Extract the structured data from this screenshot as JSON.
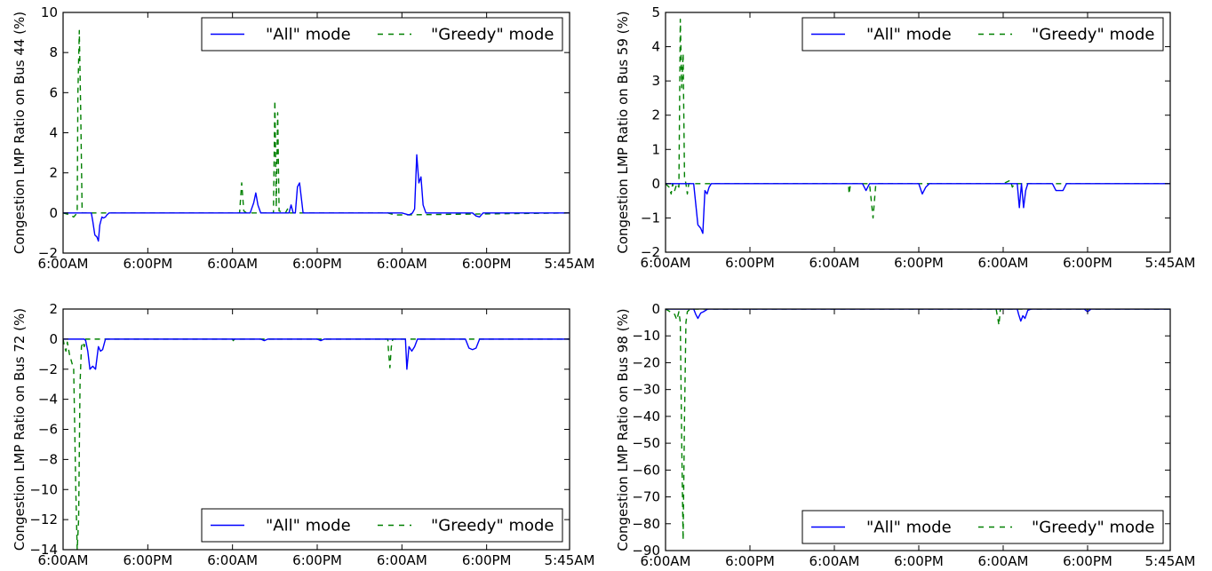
{
  "figure": {
    "background": "#ffffff",
    "colors": {
      "all_mode": "#0000ff",
      "greedy_mode": "#008000",
      "axes": "#000000"
    }
  },
  "chart_data": [
    {
      "type": "line",
      "title": "",
      "xlabel": "",
      "ylabel": "Congestion LMP Ratio on Bus 44 (%)",
      "x_tick_labels": [
        "6:00AM",
        "6:00PM",
        "6:00AM",
        "6:00PM",
        "6:00AM",
        "6:00PM",
        "5:45AM"
      ],
      "x_tick_hours": [
        0,
        12,
        24,
        36,
        48,
        60,
        71.75
      ],
      "xlim": [
        0,
        71.75
      ],
      "ylim": [
        -2,
        10
      ],
      "y_ticks": [
        -2,
        0,
        2,
        4,
        6,
        8,
        10
      ],
      "y_tick_labels": [
        "−2",
        "0",
        "2",
        "4",
        "6",
        "8",
        "10"
      ],
      "legend": {
        "position": "top-right",
        "entries": [
          "\"All\" mode",
          "\"Greedy\" mode"
        ]
      },
      "series": [
        {
          "name": "\"All\" mode",
          "style": "solid",
          "color": "#0000ff",
          "x": [
            0,
            4,
            4.2,
            4.5,
            4.8,
            5.0,
            5.2,
            5.5,
            5.7,
            6.0,
            6.2,
            6.5,
            7.0,
            26.5,
            27.0,
            27.3,
            27.6,
            28.0,
            28.5,
            32.0,
            32.3,
            32.6,
            32.9,
            33.2,
            33.5,
            33.8,
            34.0,
            34.5,
            35.0,
            48.0,
            49.0,
            49.5,
            49.8,
            50.1,
            50.4,
            50.7,
            51.0,
            51.4,
            58.0,
            58.5,
            59.0,
            59.5,
            71.75
          ],
          "y": [
            0,
            0,
            -0.4,
            -1.1,
            -1.2,
            -1.4,
            -0.6,
            -0.2,
            -0.25,
            -0.2,
            -0.1,
            0,
            0,
            0,
            0.5,
            1.0,
            0.4,
            0,
            0,
            0,
            0.4,
            0,
            0,
            1.3,
            1.5,
            0.6,
            0,
            0,
            0,
            0,
            -0.1,
            0,
            0.2,
            2.9,
            1.5,
            1.8,
            0.4,
            0,
            0,
            -0.15,
            -0.2,
            0,
            0
          ]
        },
        {
          "name": "\"Greedy\" mode",
          "style": "dashed",
          "color": "#008000",
          "x": [
            0,
            1.0,
            1.5,
            2.0,
            2.1,
            2.3,
            2.5,
            2.7,
            3.0,
            3.3,
            3.6,
            4.0,
            24.0,
            25.0,
            25.3,
            25.6,
            26.0,
            29.8,
            30.0,
            30.2,
            30.4,
            30.6,
            31.5,
            31.8,
            32.0,
            46.0,
            47.0,
            71.75
          ],
          "y": [
            0,
            -0.1,
            -0.2,
            0,
            6.0,
            9.1,
            5.0,
            0,
            0,
            0,
            0,
            0,
            0,
            0,
            1.5,
            0.1,
            0,
            0,
            5.6,
            0.3,
            5.0,
            0.1,
            0,
            0.2,
            0,
            0,
            -0.1,
            0
          ]
        }
      ]
    },
    {
      "type": "line",
      "title": "",
      "xlabel": "",
      "ylabel": "Congestion LMP Ratio on Bus 59 (%)",
      "x_tick_labels": [
        "6:00AM",
        "6:00PM",
        "6:00AM",
        "6:00PM",
        "6:00AM",
        "6:00PM",
        "5:45AM"
      ],
      "x_tick_hours": [
        0,
        12,
        24,
        36,
        48,
        60,
        71.75
      ],
      "xlim": [
        0,
        71.75
      ],
      "ylim": [
        -2,
        5
      ],
      "y_ticks": [
        -2,
        -1,
        0,
        1,
        2,
        3,
        4,
        5
      ],
      "y_tick_labels": [
        "−2",
        "−1",
        "0",
        "1",
        "2",
        "3",
        "4",
        "5"
      ],
      "legend": {
        "position": "top-right",
        "entries": [
          "\"All\" mode",
          "\"Greedy\" mode"
        ]
      },
      "series": [
        {
          "name": "\"All\" mode",
          "style": "solid",
          "color": "#0000ff",
          "x": [
            0,
            4.0,
            4.3,
            4.6,
            5.0,
            5.3,
            5.6,
            5.9,
            6.2,
            6.5,
            7.0,
            28.0,
            28.5,
            29.0,
            36.0,
            36.5,
            37.0,
            37.5,
            48.0,
            50.0,
            50.3,
            50.6,
            50.9,
            51.2,
            51.5,
            52.0,
            55.0,
            55.5,
            56.5,
            57.0,
            71.75
          ],
          "y": [
            0,
            0,
            -0.6,
            -1.2,
            -1.3,
            -1.45,
            -0.2,
            -0.3,
            -0.1,
            0,
            0,
            0,
            -0.2,
            0,
            0,
            -0.3,
            -0.1,
            0,
            0,
            0,
            -0.7,
            0,
            -0.7,
            -0.2,
            0,
            0,
            0,
            -0.2,
            -0.2,
            0,
            0
          ]
        },
        {
          "name": "\"Greedy\" mode",
          "style": "dashed",
          "color": "#008000",
          "x": [
            0,
            0.5,
            0.8,
            1.0,
            1.3,
            1.6,
            1.9,
            2.1,
            2.3,
            2.5,
            2.7,
            2.9,
            3.1,
            3.3,
            3.6,
            4.0,
            26.0,
            26.1,
            26.3,
            28.0,
            29.0,
            29.3,
            29.5,
            29.7,
            29.9,
            48.0,
            49.0,
            49.3,
            49.6,
            71.75
          ],
          "y": [
            0,
            -0.1,
            -0.3,
            0,
            -0.2,
            0,
            -0.1,
            4.8,
            2.8,
            3.8,
            0.2,
            0,
            -0.3,
            0,
            0,
            0,
            0,
            -0.3,
            0,
            0,
            0,
            -0.6,
            -1.0,
            -0.5,
            0,
            0,
            0.1,
            -0.1,
            0,
            0
          ]
        }
      ]
    },
    {
      "type": "line",
      "title": "",
      "xlabel": "",
      "ylabel": "Congestion LMP Ratio on Bus 72 (%)",
      "x_tick_labels": [
        "6:00AM",
        "6:00PM",
        "6:00AM",
        "6:00PM",
        "6:00AM",
        "6:00PM",
        "5:45AM"
      ],
      "x_tick_hours": [
        0,
        12,
        24,
        36,
        48,
        60,
        71.75
      ],
      "xlim": [
        0,
        71.75
      ],
      "ylim": [
        -14,
        2
      ],
      "y_ticks": [
        -14,
        -12,
        -10,
        -8,
        -6,
        -4,
        -2,
        0,
        2
      ],
      "y_tick_labels": [
        "−14",
        "−12",
        "−10",
        "−8",
        "−6",
        "−4",
        "−2",
        "0",
        "2"
      ],
      "legend": {
        "position": "bottom-right",
        "entries": [
          "\"All\" mode",
          "\"Greedy\" mode"
        ]
      },
      "series": [
        {
          "name": "\"All\" mode",
          "style": "solid",
          "color": "#0000ff",
          "x": [
            0,
            3.0,
            3.2,
            3.5,
            3.8,
            4.2,
            4.6,
            5.0,
            5.3,
            5.6,
            6.0,
            6.5,
            28.0,
            28.5,
            29.0,
            36.0,
            36.5,
            37.0,
            48.0,
            48.5,
            48.7,
            49.0,
            49.4,
            49.8,
            50.2,
            50.6,
            51.0,
            57.0,
            57.5,
            58.0,
            58.5,
            59.0,
            71.75
          ],
          "y": [
            0,
            0,
            -0.1,
            -0.8,
            -2.0,
            -1.8,
            -2.0,
            -0.5,
            -0.8,
            -0.7,
            0,
            0,
            0,
            -0.1,
            0,
            0,
            -0.1,
            0,
            0,
            0,
            -2.0,
            -0.5,
            -0.8,
            -0.5,
            0,
            0,
            0,
            0,
            -0.6,
            -0.7,
            -0.6,
            0,
            0
          ]
        },
        {
          "name": "\"Greedy\" mode",
          "style": "dashed",
          "color": "#008000",
          "x": [
            0,
            0.2,
            0.4,
            0.6,
            0.9,
            1.2,
            1.5,
            1.8,
            2.0,
            2.2,
            2.4,
            2.6,
            2.8,
            3.0,
            3.2,
            3.5,
            4.0,
            24.0,
            24.1,
            24.3,
            30.0,
            30.1,
            30.3,
            46.0,
            46.1,
            46.3,
            46.5,
            46.7,
            71.75
          ],
          "y": [
            0,
            -0.5,
            -0.8,
            -0.2,
            -1.0,
            -1.5,
            -2.0,
            -10.0,
            -14.0,
            -12.0,
            -3.0,
            -0.5,
            -0.2,
            -0.5,
            0,
            0,
            0,
            0,
            -0.1,
            0,
            0,
            -0.1,
            0,
            0,
            -0.8,
            -1.9,
            -0.5,
            0,
            0
          ]
        }
      ]
    },
    {
      "type": "line",
      "title": "",
      "xlabel": "",
      "ylabel": "Congestion LMP Ratio on Bus 98 (%)",
      "x_tick_labels": [
        "6:00AM",
        "6:00PM",
        "6:00AM",
        "6:00PM",
        "6:00AM",
        "6:00PM",
        "5:45AM"
      ],
      "x_tick_hours": [
        0,
        12,
        24,
        36,
        48,
        60,
        71.75
      ],
      "xlim": [
        0,
        71.75
      ],
      "ylim": [
        -90,
        0
      ],
      "y_ticks": [
        -90,
        -80,
        -70,
        -60,
        -50,
        -40,
        -30,
        -20,
        -10,
        0
      ],
      "y_tick_labels": [
        "−90",
        "−80",
        "−70",
        "−60",
        "−50",
        "−40",
        "−30",
        "−20",
        "−10",
        "0"
      ],
      "legend": {
        "position": "bottom-right",
        "entries": [
          "\"All\" mode",
          "\"Greedy\" mode"
        ]
      },
      "series": [
        {
          "name": "\"All\" mode",
          "style": "solid",
          "color": "#0000ff",
          "x": [
            0,
            4.0,
            4.3,
            4.6,
            5.0,
            5.4,
            6.0,
            50.0,
            50.2,
            50.5,
            50.8,
            51.1,
            51.5,
            52.0,
            59.5,
            60.0,
            60.5,
            71.75
          ],
          "y": [
            0,
            0,
            -2.0,
            -3.5,
            -1.5,
            -1.0,
            0,
            0,
            -2.0,
            -4.5,
            -2.5,
            -3.5,
            -0.5,
            0,
            0,
            -1.0,
            0,
            0
          ]
        },
        {
          "name": "\"Greedy\" mode",
          "style": "dashed",
          "color": "#008000",
          "x": [
            0,
            1.3,
            1.6,
            1.9,
            2.1,
            2.3,
            2.5,
            2.7,
            2.9,
            3.1,
            3.5,
            4.0,
            47.0,
            47.2,
            47.4,
            47.6,
            71.75
          ],
          "y": [
            0,
            -2.0,
            -4.0,
            -1.0,
            -5.0,
            -50.0,
            -86.0,
            -40.0,
            -5.0,
            -1.0,
            0,
            0,
            0,
            -3.0,
            -6.0,
            0,
            0
          ]
        }
      ]
    }
  ]
}
